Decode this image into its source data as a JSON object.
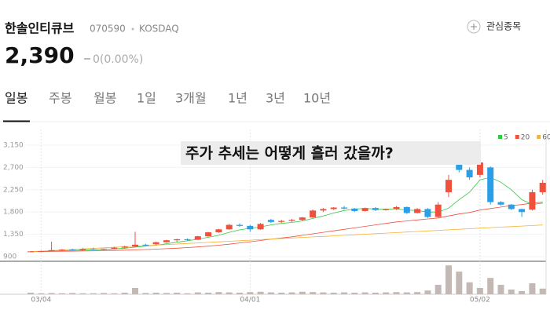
{
  "header": {
    "name": "한솔인티큐브",
    "code": "070590",
    "market": "KOSDAQ",
    "price": "2,390",
    "change": "0(0.00%)",
    "watch_button": "관심종목"
  },
  "tabs": [
    "일봉",
    "주봉",
    "월봉",
    "1일",
    "3개월",
    "1년",
    "3년",
    "10년"
  ],
  "chart_data": {
    "type": "candlestick",
    "title": "주가 추세는 어떻게 흘러 갔을까?",
    "categories": [
      null,
      "03/04",
      null,
      null,
      null,
      null,
      null,
      null,
      null,
      null,
      null,
      null,
      null,
      null,
      null,
      null,
      null,
      null,
      null,
      null,
      null,
      "04/01",
      null,
      null,
      null,
      null,
      null,
      null,
      null,
      null,
      null,
      null,
      null,
      null,
      null,
      null,
      null,
      null,
      null,
      null,
      null,
      null,
      null,
      "05/02",
      null,
      null,
      null,
      null,
      null,
      null
    ],
    "open": [
      1000,
      1005,
      1010,
      1030,
      1040,
      1030,
      1050,
      1040,
      1060,
      1080,
      1100,
      1140,
      1150,
      1190,
      1230,
      1250,
      1240,
      1310,
      1390,
      1450,
      1540,
      1520,
      1450,
      1640,
      1600,
      1620,
      1640,
      1690,
      1830,
      1860,
      1890,
      1870,
      1820,
      1880,
      1840,
      1860,
      1900,
      1780,
      1860,
      1700,
      2200,
      2850,
      2650,
      2550,
      2700,
      2000,
      1950,
      1860,
      1850,
      2200
    ],
    "high": [
      1010,
      1020,
      1200,
      1050,
      1060,
      1070,
      1080,
      1060,
      1100,
      1120,
      1400,
      1160,
      1200,
      1240,
      1260,
      1270,
      1320,
      1400,
      1460,
      1560,
      1570,
      1540,
      1580,
      1660,
      1640,
      1660,
      1700,
      1850,
      1880,
      1900,
      1920,
      1880,
      1890,
      1900,
      1870,
      1920,
      1910,
      1880,
      1880,
      2000,
      2550,
      2900,
      2700,
      2900,
      2720,
      2020,
      1960,
      1870,
      2250,
      2450
    ],
    "low": [
      990,
      995,
      1000,
      1010,
      1020,
      1020,
      1030,
      1030,
      1050,
      1060,
      1090,
      1110,
      1130,
      1180,
      1200,
      1220,
      1230,
      1300,
      1380,
      1440,
      1500,
      1400,
      1440,
      1580,
      1580,
      1600,
      1620,
      1680,
      1800,
      1840,
      1850,
      1800,
      1810,
      1820,
      1830,
      1840,
      1760,
      1770,
      1680,
      1690,
      2100,
      2600,
      2450,
      2500,
      1950,
      1930,
      1840,
      1700,
      1830,
      2150
    ],
    "close": [
      1005,
      1010,
      1030,
      1040,
      1030,
      1050,
      1040,
      1060,
      1080,
      1100,
      1140,
      1130,
      1190,
      1230,
      1250,
      1240,
      1310,
      1390,
      1450,
      1540,
      1520,
      1450,
      1560,
      1600,
      1620,
      1640,
      1690,
      1830,
      1860,
      1890,
      1870,
      1820,
      1880,
      1840,
      1860,
      1900,
      1780,
      1860,
      1700,
      1950,
      2450,
      2650,
      2500,
      2800,
      2000,
      1950,
      1860,
      1800,
      2200,
      2390
    ],
    "up_color": "#f0503c",
    "down_color": "#2a9ee6",
    "series": [
      {
        "name": "5",
        "color": "#2ecc40",
        "values": [
          1000,
          1005,
          1010,
          1020,
          1025,
          1030,
          1040,
          1045,
          1055,
          1070,
          1090,
          1110,
          1130,
          1160,
          1190,
          1220,
          1250,
          1290,
          1330,
          1390,
          1440,
          1470,
          1500,
          1540,
          1570,
          1590,
          1620,
          1670,
          1720,
          1780,
          1830,
          1860,
          1870,
          1860,
          1860,
          1860,
          1840,
          1830,
          1800,
          1800,
          1880,
          2050,
          2200,
          2450,
          2500,
          2400,
          2250,
          2050,
          1950,
          1980
        ]
      },
      {
        "name": "20",
        "color": "#f0503c",
        "values": [
          1000,
          1002,
          1005,
          1008,
          1010,
          1013,
          1016,
          1020,
          1024,
          1030,
          1036,
          1043,
          1050,
          1060,
          1070,
          1082,
          1095,
          1110,
          1130,
          1150,
          1175,
          1200,
          1225,
          1250,
          1275,
          1300,
          1330,
          1360,
          1390,
          1420,
          1450,
          1480,
          1510,
          1540,
          1570,
          1600,
          1620,
          1640,
          1660,
          1680,
          1720,
          1760,
          1790,
          1840,
          1870,
          1900,
          1930,
          1950,
          1980,
          2000
        ]
      },
      {
        "name": "60",
        "color": "#f5b335",
        "values": [
          1000,
          1011,
          1022,
          1033,
          1044,
          1055,
          1066,
          1077,
          1088,
          1099,
          1110,
          1121,
          1132,
          1143,
          1154,
          1165,
          1176,
          1187,
          1198,
          1209,
          1220,
          1231,
          1242,
          1253,
          1264,
          1275,
          1286,
          1297,
          1308,
          1319,
          1330,
          1341,
          1352,
          1363,
          1374,
          1385,
          1396,
          1407,
          1418,
          1429,
          1440,
          1451,
          1462,
          1473,
          1484,
          1495,
          1506,
          1517,
          1528,
          1539
        ]
      }
    ],
    "volume": [
      5,
      3,
      4,
      3,
      4,
      3,
      3,
      4,
      3,
      5,
      20,
      4,
      5,
      4,
      5,
      3,
      6,
      5,
      7,
      6,
      5,
      7,
      8,
      6,
      5,
      6,
      8,
      7,
      6,
      5,
      6,
      5,
      6,
      5,
      6,
      7,
      6,
      7,
      12,
      30,
      92,
      72,
      38,
      20,
      52,
      30,
      15,
      10,
      35,
      18
    ],
    "volume_color": "#c4b8b4",
    "volume_ylim": [
      0,
      100
    ],
    "ylim": [
      900,
      3150
    ],
    "yticks": [
      900,
      {
        "value": 1350,
        "label": "1,350"
      },
      {
        "value": 1800,
        "label": "1,800"
      },
      {
        "value": 2250,
        "label": "2,250"
      },
      {
        "value": 2700,
        "label": "2,700"
      },
      {
        "value": 3150,
        "label": "3,150"
      }
    ]
  }
}
